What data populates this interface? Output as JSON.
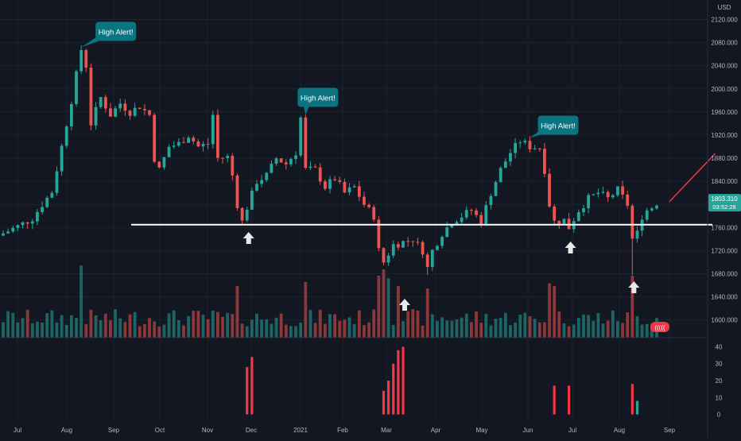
{
  "chart_data": [
    {
      "type": "candlestick",
      "title": "",
      "ylabel": "USD",
      "ylim": [
        1568,
        2140
      ],
      "y_ticks": [
        1600,
        1640,
        1680,
        1720,
        1760,
        1800,
        1840,
        1880,
        1920,
        1960,
        2000,
        2040,
        2080,
        2120
      ],
      "y_tick_labels": [
        "1600.000",
        "1640.000",
        "1680.000",
        "1720.000",
        "1760.000",
        "1800.000",
        "1840.000",
        "1880.000",
        "1920.000",
        "1960.000",
        "2000.000",
        "2040.000",
        "2080.000",
        "2120.000"
      ],
      "x_labels": [
        "Jul",
        "Aug",
        "Sep",
        "Oct",
        "Nov",
        "Dec",
        "2021",
        "Feb",
        "Mar",
        "Apr",
        "May",
        "Jun",
        "Jul",
        "Aug",
        "Sep"
      ],
      "grid": true,
      "close_path": [
        [
          0,
          1750
        ],
        [
          3,
          1762
        ],
        [
          6,
          1776
        ],
        [
          8,
          1800
        ],
        [
          10,
          1822
        ],
        [
          12,
          1900
        ],
        [
          14,
          1980
        ],
        [
          16,
          2068
        ],
        [
          17,
          2040
        ],
        [
          18,
          1940
        ],
        [
          20,
          1985
        ],
        [
          22,
          1955
        ],
        [
          24,
          1975
        ],
        [
          26,
          1960
        ],
        [
          28,
          1970
        ],
        [
          30,
          1955
        ],
        [
          31,
          1880
        ],
        [
          32,
          1860
        ],
        [
          34,
          1900
        ],
        [
          36,
          1905
        ],
        [
          38,
          1920
        ],
        [
          40,
          1900
        ],
        [
          42,
          1905
        ],
        [
          43,
          1955
        ],
        [
          44,
          1880
        ],
        [
          46,
          1882
        ],
        [
          47,
          1850
        ],
        [
          48,
          1800
        ],
        [
          49,
          1770
        ],
        [
          50,
          1795
        ],
        [
          52,
          1840
        ],
        [
          54,
          1850
        ],
        [
          56,
          1880
        ],
        [
          58,
          1870
        ],
        [
          60,
          1890
        ],
        [
          61,
          1950
        ],
        [
          62,
          1860
        ],
        [
          64,
          1860
        ],
        [
          66,
          1830
        ],
        [
          68,
          1845
        ],
        [
          70,
          1820
        ],
        [
          72,
          1830
        ],
        [
          74,
          1800
        ],
        [
          76,
          1780
        ],
        [
          77,
          1720
        ],
        [
          78,
          1700
        ],
        [
          80,
          1730
        ],
        [
          82,
          1735
        ],
        [
          84,
          1740
        ],
        [
          86,
          1720
        ],
        [
          87,
          1690
        ],
        [
          88,
          1720
        ],
        [
          90,
          1750
        ],
        [
          92,
          1770
        ],
        [
          94,
          1780
        ],
        [
          96,
          1790
        ],
        [
          98,
          1770
        ],
        [
          100,
          1820
        ],
        [
          102,
          1860
        ],
        [
          104,
          1890
        ],
        [
          106,
          1910
        ],
        [
          108,
          1900
        ],
        [
          110,
          1898
        ],
        [
          111,
          1860
        ],
        [
          112,
          1800
        ],
        [
          113,
          1770
        ],
        [
          114,
          1770
        ],
        [
          115,
          1773
        ],
        [
          116,
          1760
        ],
        [
          118,
          1790
        ],
        [
          120,
          1810
        ],
        [
          122,
          1820
        ],
        [
          124,
          1810
        ],
        [
          126,
          1825
        ],
        [
          128,
          1800
        ],
        [
          129,
          1740
        ],
        [
          130,
          1750
        ],
        [
          131,
          1780
        ],
        [
          132,
          1790
        ],
        [
          133,
          1795
        ],
        [
          134,
          1803
        ]
      ],
      "last_price": "1803.310",
      "countdown": "03:52:28",
      "support_level": 1765,
      "projection_line": {
        "x": [
          135,
          145
        ],
        "y": [
          1805,
          1888
        ]
      },
      "annotations": [
        {
          "text": "High Alert!",
          "at_x": 16,
          "at_y": 2072
        },
        {
          "text": "High Alert!",
          "at_x": 62,
          "at_y": 1955
        },
        {
          "text": "High Alert!",
          "at_x": 108,
          "at_y": 1915
        }
      ],
      "up_arrows_x": [
        50,
        82,
        116,
        129
      ],
      "volume_badge": "((((("
    },
    {
      "type": "bar",
      "title": "",
      "ylim": [
        -3,
        43
      ],
      "y_ticks": [
        0,
        10,
        20,
        30,
        40
      ],
      "y_tick_labels": [
        "0",
        "10",
        "20",
        "30",
        "40"
      ],
      "series": [
        {
          "x": [
            50,
            51
          ],
          "values": [
            28,
            34
          ],
          "color": "#f23645"
        },
        {
          "x": [
            78,
            79,
            80,
            81,
            82
          ],
          "values": [
            14,
            20,
            30,
            38,
            40
          ],
          "color": "#f23645"
        },
        {
          "x": [
            113
          ],
          "values": [
            17
          ],
          "color": "#f23645"
        },
        {
          "x": [
            116
          ],
          "values": [
            17
          ],
          "color": "#f23645"
        },
        {
          "x": [
            129
          ],
          "values": [
            18
          ],
          "color": "#f23645"
        },
        {
          "x": [
            130
          ],
          "values": [
            8
          ],
          "color": "#26a69a"
        }
      ]
    }
  ]
}
